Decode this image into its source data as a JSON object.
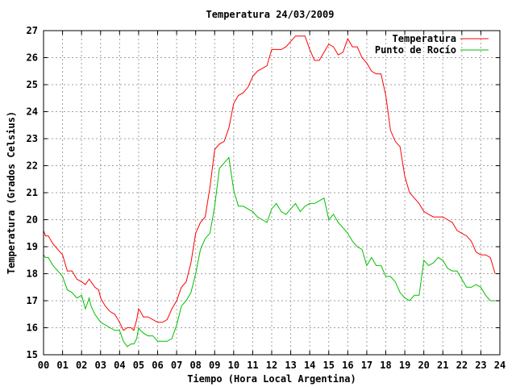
{
  "chart_data": {
    "type": "line",
    "title": "Temperatura 24/03/2009",
    "xlabel": "Tiempo (Hora Local Argentina)",
    "ylabel": "Temperatura (Grados Celsius)",
    "xlim": [
      0,
      24
    ],
    "ylim": [
      15,
      27
    ],
    "x_ticks": [
      "00",
      "01",
      "02",
      "03",
      "04",
      "05",
      "06",
      "07",
      "08",
      "09",
      "10",
      "11",
      "12",
      "13",
      "14",
      "15",
      "16",
      "17",
      "18",
      "19",
      "20",
      "21",
      "22",
      "23",
      "24"
    ],
    "y_ticks": [
      "15",
      "16",
      "17",
      "18",
      "19",
      "20",
      "21",
      "22",
      "23",
      "24",
      "25",
      "26",
      "27"
    ],
    "grid": true,
    "legend_position": "top-right",
    "series": [
      {
        "name": "Temperatura",
        "color": "#ff0000",
        "x": [
          0,
          0.1,
          0.25,
          0.5,
          0.75,
          1,
          1.25,
          1.5,
          1.75,
          2,
          2.2,
          2.4,
          2.5,
          2.7,
          2.9,
          3,
          3.25,
          3.5,
          3.75,
          4,
          4.2,
          4.4,
          4.6,
          4.75,
          4.9,
          5,
          5.1,
          5.25,
          5.5,
          5.75,
          6,
          6.25,
          6.5,
          6.75,
          7,
          7.25,
          7.5,
          7.75,
          8,
          8.25,
          8.5,
          8.75,
          9,
          9.25,
          9.5,
          9.75,
          10,
          10.25,
          10.5,
          10.75,
          11,
          11.25,
          11.5,
          11.75,
          12,
          12.25,
          12.5,
          12.75,
          13,
          13.25,
          13.5,
          13.75,
          14,
          14.25,
          14.5,
          14.75,
          15,
          15.25,
          15.5,
          15.75,
          16,
          16.25,
          16.5,
          16.75,
          17,
          17.25,
          17.5,
          17.75,
          18,
          18.25,
          18.5,
          18.75,
          19,
          19.25,
          19.5,
          19.75,
          20,
          20.25,
          20.5,
          20.75,
          21,
          21.25,
          21.5,
          21.75,
          22,
          22.25,
          22.5,
          22.75,
          23,
          23.25,
          23.5,
          23.75
        ],
        "values": [
          19.6,
          19.4,
          19.4,
          19.1,
          18.9,
          18.7,
          18.1,
          18.1,
          17.8,
          17.7,
          17.6,
          17.8,
          17.7,
          17.5,
          17.4,
          17.1,
          16.8,
          16.6,
          16.5,
          16.2,
          15.9,
          16.0,
          16.0,
          15.9,
          16.3,
          16.7,
          16.6,
          16.4,
          16.4,
          16.3,
          16.2,
          16.2,
          16.3,
          16.7,
          17.0,
          17.5,
          17.7,
          18.4,
          19.5,
          19.9,
          20.1,
          21.2,
          22.6,
          22.8,
          22.9,
          23.4,
          24.3,
          24.6,
          24.7,
          24.9,
          25.3,
          25.5,
          25.6,
          25.7,
          26.3,
          26.3,
          26.3,
          26.4,
          26.6,
          26.8,
          26.8,
          26.8,
          26.3,
          25.9,
          25.9,
          26.2,
          26.5,
          26.4,
          26.1,
          26.2,
          26.7,
          26.4,
          26.4,
          26.0,
          25.8,
          25.5,
          25.4,
          25.4,
          24.6,
          23.3,
          22.9,
          22.7,
          21.6,
          21.0,
          20.8,
          20.6,
          20.3,
          20.2,
          20.1,
          20.1,
          20.1,
          20.0,
          19.9,
          19.6,
          19.5,
          19.4,
          19.2,
          18.8,
          18.7,
          18.7,
          18.6,
          18.0
        ]
      },
      {
        "name": "Punto de Rocío",
        "color": "#00c000",
        "x": [
          0,
          0.1,
          0.25,
          0.5,
          0.75,
          1,
          1.25,
          1.5,
          1.75,
          2,
          2.2,
          2.4,
          2.5,
          2.7,
          2.9,
          3,
          3.25,
          3.5,
          3.75,
          4,
          4.2,
          4.4,
          4.6,
          4.75,
          4.9,
          5,
          5.1,
          5.25,
          5.5,
          5.75,
          6,
          6.25,
          6.5,
          6.75,
          7,
          7.25,
          7.5,
          7.75,
          8,
          8.25,
          8.5,
          8.75,
          9,
          9.25,
          9.5,
          9.75,
          10,
          10.25,
          10.5,
          10.75,
          11,
          11.25,
          11.5,
          11.75,
          12,
          12.25,
          12.5,
          12.75,
          13,
          13.25,
          13.5,
          13.75,
          14,
          14.25,
          14.5,
          14.75,
          15,
          15.25,
          15.5,
          15.75,
          16,
          16.25,
          16.5,
          16.75,
          17,
          17.25,
          17.5,
          17.75,
          18,
          18.25,
          18.5,
          18.75,
          19,
          19.25,
          19.5,
          19.75,
          20,
          20.25,
          20.5,
          20.75,
          21,
          21.25,
          21.5,
          21.75,
          22,
          22.25,
          22.5,
          22.75,
          23,
          23.25,
          23.5,
          23.75
        ],
        "values": [
          18.7,
          18.6,
          18.6,
          18.3,
          18.1,
          17.9,
          17.4,
          17.3,
          17.1,
          17.2,
          16.7,
          17.1,
          16.8,
          16.5,
          16.3,
          16.2,
          16.1,
          16.0,
          15.9,
          15.9,
          15.5,
          15.3,
          15.4,
          15.4,
          15.6,
          16.0,
          15.9,
          15.8,
          15.7,
          15.7,
          15.5,
          15.5,
          15.5,
          15.6,
          16.1,
          16.8,
          17.0,
          17.3,
          18.0,
          18.9,
          19.3,
          19.5,
          20.5,
          21.9,
          22.1,
          22.3,
          21.1,
          20.5,
          20.5,
          20.4,
          20.3,
          20.1,
          20.0,
          19.9,
          20.4,
          20.6,
          20.3,
          20.2,
          20.4,
          20.6,
          20.3,
          20.5,
          20.6,
          20.6,
          20.7,
          20.8,
          20.0,
          20.2,
          19.9,
          19.7,
          19.5,
          19.2,
          19.0,
          18.9,
          18.3,
          18.6,
          18.3,
          18.3,
          17.9,
          17.9,
          17.7,
          17.3,
          17.1,
          17.0,
          17.2,
          17.2,
          18.5,
          18.3,
          18.4,
          18.6,
          18.5,
          18.2,
          18.1,
          18.1,
          17.8,
          17.5,
          17.5,
          17.6,
          17.5,
          17.2,
          17.0,
          17.0
        ]
      }
    ]
  }
}
